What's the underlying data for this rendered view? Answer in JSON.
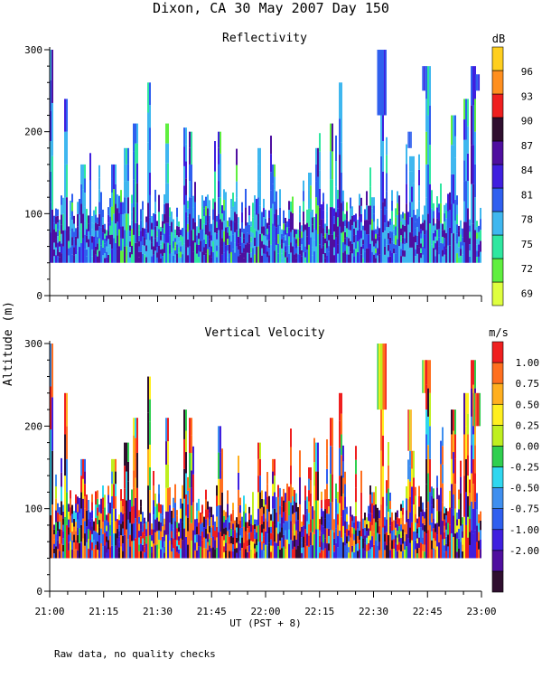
{
  "title": "Dixon, CA 30 May 2007  Day 150",
  "footnote": "Raw data, no quality checks",
  "xaxis": {
    "label": "UT  (PST + 8)",
    "ticks": [
      "21:00",
      "21:15",
      "21:30",
      "21:45",
      "22:00",
      "22:15",
      "22:30",
      "22:45",
      "23:00"
    ],
    "range_minutes": [
      0,
      120
    ]
  },
  "yaxis": {
    "label": "Altitude (m)",
    "ticks": [
      "0",
      "100",
      "200",
      "300"
    ],
    "range": [
      0,
      300
    ]
  },
  "colors": {
    "reflectivity": [
      "#dfff3f",
      "#5fef3f",
      "#2fe7a0",
      "#3fb7ef",
      "#2f5fef",
      "#3f1fdf",
      "#4f0f9f",
      "#2f0f2f",
      "#ef1f1f",
      "#ff8f1f",
      "#ffcf1f"
    ],
    "velocity": [
      "#2f0f2f",
      "#4f0f9f",
      "#3f1fdf",
      "#2f5fef",
      "#3f8fef",
      "#2fd7ef",
      "#2fcf4f",
      "#bfef1f",
      "#ffef1f",
      "#ffaf1f",
      "#ff6f1f",
      "#ef1f1f"
    ]
  },
  "chart_data": [
    {
      "type": "heatmap",
      "title": "Reflectivity",
      "xlabel": "UT  (PST + 8)",
      "ylabel": "Altitude (m)",
      "x_range": [
        "21:00",
        "23:00"
      ],
      "ylim": [
        0,
        300
      ],
      "colorbar": {
        "unit": "dB",
        "ticks": [
          69,
          72,
          75,
          78,
          81,
          84,
          87,
          90,
          93,
          96
        ],
        "range": [
          67.5,
          99
        ]
      },
      "data_bottom_altitude_m": 40,
      "profile_top_altitude_m": [
        [
          0.3,
          300
        ],
        [
          4.3,
          240
        ],
        [
          9,
          160
        ],
        [
          17.5,
          160
        ],
        [
          21,
          180
        ],
        [
          23.6,
          210
        ],
        [
          27.5,
          260
        ],
        [
          32.5,
          210
        ],
        [
          37.5,
          205
        ],
        [
          39,
          200
        ],
        [
          47,
          200
        ],
        [
          58,
          180
        ],
        [
          62,
          160
        ],
        [
          72,
          150
        ],
        [
          74,
          180
        ],
        [
          78,
          210
        ],
        [
          80.5,
          260
        ],
        [
          89.5,
          120
        ],
        [
          92,
          300
        ],
        [
          100.5,
          170
        ],
        [
          105,
          280
        ],
        [
          112,
          220
        ],
        [
          115.5,
          240
        ],
        [
          117.5,
          280
        ]
      ],
      "typical_top_altitude_m": 120,
      "elevated_features": [
        {
          "start_min": 91,
          "end_min": 93.5,
          "bottom_m": 220,
          "top_m": 300,
          "dominant_db": 81
        },
        {
          "start_min": 103.5,
          "end_min": 104.6,
          "bottom_m": 250,
          "top_m": 280,
          "dominant_db": 84
        },
        {
          "start_min": 99.5,
          "end_min": 100.6,
          "bottom_m": 180,
          "top_m": 200,
          "dominant_db": 81
        },
        {
          "start_min": 118,
          "end_min": 119.3,
          "bottom_m": 250,
          "top_m": 270,
          "dominant_db": 84
        }
      ]
    },
    {
      "type": "heatmap",
      "title": "Vertical Velocity",
      "xlabel": "UT  (PST + 8)",
      "ylabel": "Altitude (m)",
      "x_range": [
        "21:00",
        "23:00"
      ],
      "ylim": [
        0,
        300
      ],
      "colorbar": {
        "unit": "m/s",
        "ticks": [
          "1.00",
          "0.75",
          "0.50",
          "0.25",
          "0.00",
          "-0.25",
          "-0.50",
          "-0.75",
          "-1.00",
          "-2.00"
        ],
        "range": [
          -2.25,
          1.25
        ]
      },
      "data_bottom_altitude_m": 40,
      "profile_top_altitude_m": [
        [
          0.3,
          300
        ],
        [
          4.3,
          240
        ],
        [
          9,
          160
        ],
        [
          17.5,
          160
        ],
        [
          21,
          180
        ],
        [
          23.6,
          210
        ],
        [
          27.5,
          260
        ],
        [
          32.5,
          210
        ],
        [
          37.5,
          220
        ],
        [
          39,
          210
        ],
        [
          47,
          200
        ],
        [
          58,
          180
        ],
        [
          62,
          160
        ],
        [
          72,
          150
        ],
        [
          74,
          180
        ],
        [
          78,
          210
        ],
        [
          80.5,
          240
        ],
        [
          89.5,
          120
        ],
        [
          92,
          300
        ],
        [
          100.5,
          170
        ],
        [
          105,
          280
        ],
        [
          112,
          220
        ],
        [
          115.5,
          240
        ],
        [
          117.5,
          280
        ]
      ],
      "typical_top_altitude_m": 120,
      "elevated_features": [
        {
          "start_min": 91,
          "end_min": 93.5,
          "bottom_m": 220,
          "top_m": 300,
          "dominant_ms": 0.5
        },
        {
          "start_min": 103.5,
          "end_min": 104.6,
          "bottom_m": 240,
          "top_m": 280,
          "dominant_ms": 0.75
        },
        {
          "start_min": 99.5,
          "end_min": 100.6,
          "bottom_m": 170,
          "top_m": 220,
          "dominant_ms": -0.5
        },
        {
          "start_min": 117.5,
          "end_min": 119.5,
          "bottom_m": 200,
          "top_m": 240,
          "dominant_ms": 0.25
        }
      ]
    }
  ]
}
